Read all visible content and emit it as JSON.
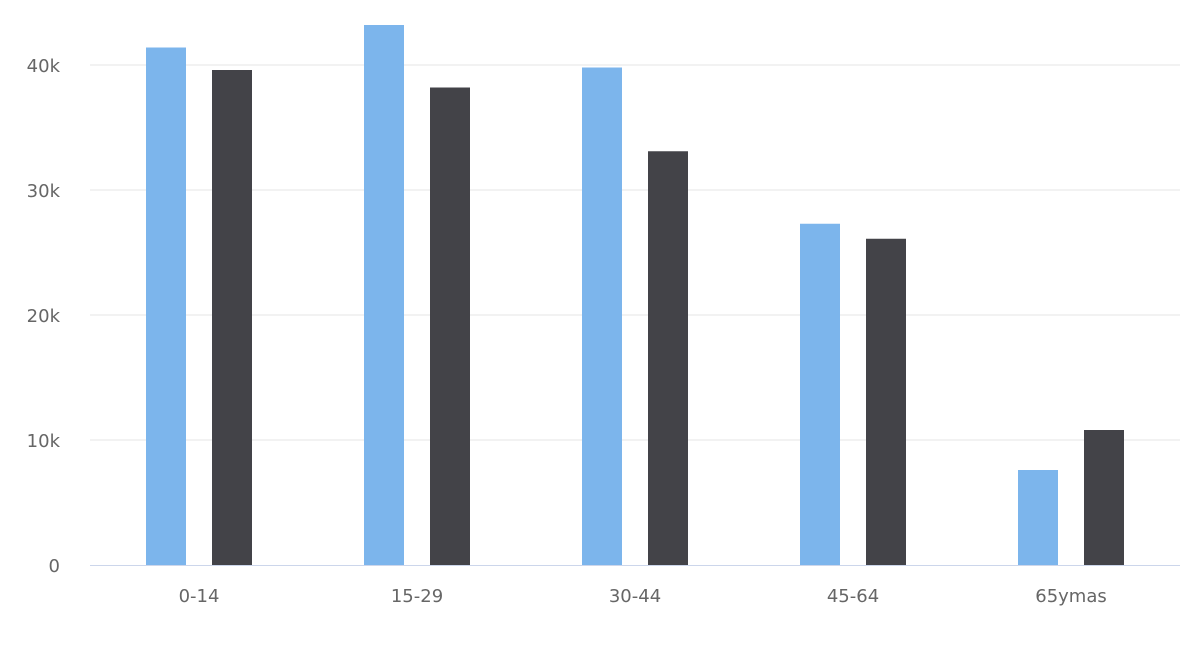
{
  "chart_data": {
    "type": "bar",
    "title": "",
    "xlabel": "",
    "ylabel": "",
    "categories": [
      "0-14",
      "15-29",
      "30-44",
      "45-64",
      "65ymas"
    ],
    "series": [
      {
        "values": [
          41400,
          43200,
          39800,
          27300,
          7600
        ],
        "color": "#7cb5ec"
      },
      {
        "values": [
          39600,
          38200,
          33100,
          26100,
          10800
        ],
        "color": "#434348"
      }
    ],
    "ylim": [
      0,
      43000
    ],
    "yticks": [
      0,
      10000,
      20000,
      30000,
      40000
    ],
    "ytick_labels": [
      "0",
      "10k",
      "20k",
      "30k",
      "40k"
    ],
    "grid": true,
    "legend": "none"
  }
}
